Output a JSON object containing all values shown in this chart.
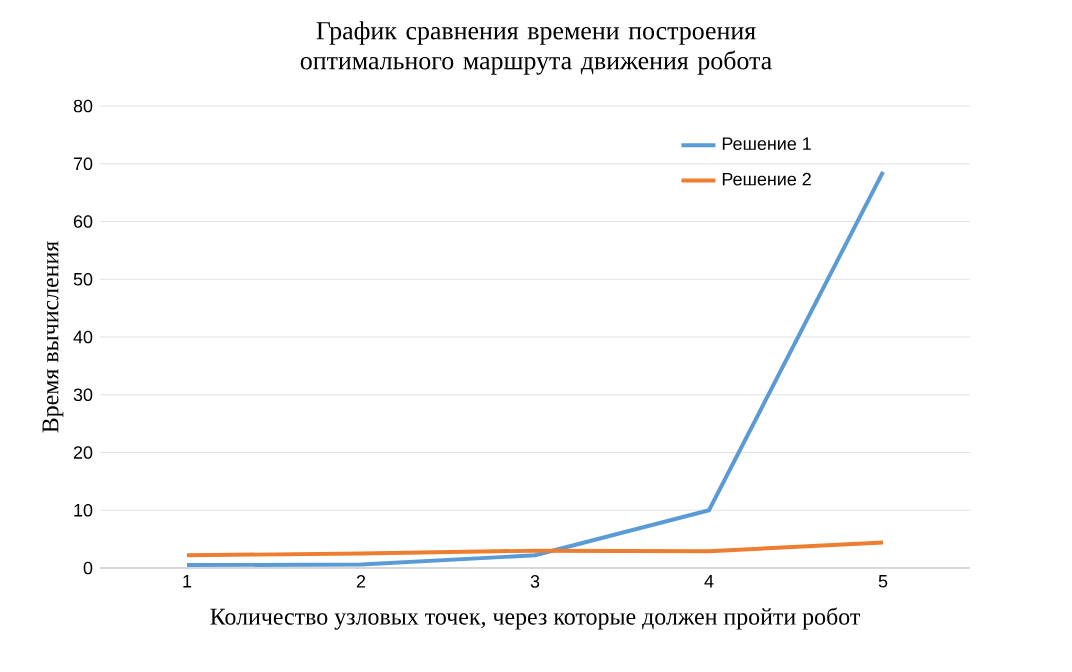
{
  "chart_data": {
    "type": "line",
    "title": "График сравнения времени построения оптимального маршрута движения робота",
    "xlabel": "Количество узловых точек, через которые должен пройти робот",
    "ylabel": "Время вычисления",
    "categories": [
      "1",
      "2",
      "3",
      "4",
      "5"
    ],
    "series": [
      {
        "name": "Решение 1",
        "color": "#5b9bd5",
        "values": [
          0.5,
          0.6,
          2.2,
          10,
          68.6
        ]
      },
      {
        "name": "Решение 2",
        "color": "#ed7d31",
        "values": [
          2.2,
          2.5,
          3,
          2.9,
          4.4
        ]
      }
    ],
    "ylim": [
      0,
      80
    ],
    "yticks": [
      0,
      10,
      20,
      30,
      40,
      50,
      60,
      70,
      80
    ],
    "grid": "y",
    "legend": "top right",
    "marker": "none",
    "line_style": "solid"
  }
}
